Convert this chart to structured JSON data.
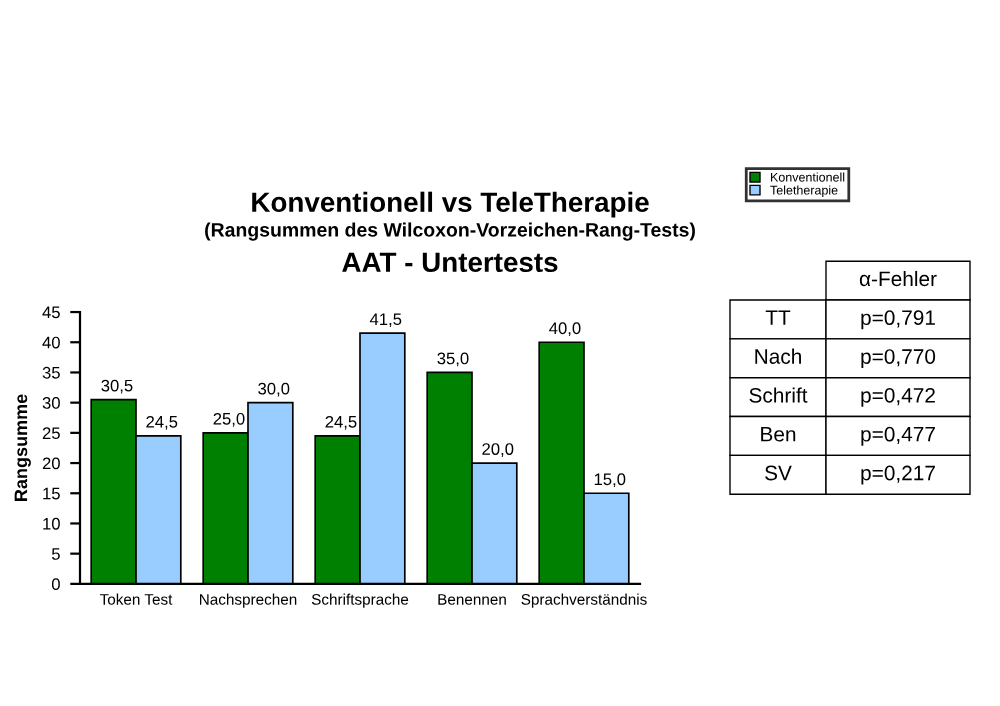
{
  "chart_data": {
    "type": "bar",
    "title": "Konventionell vs TeleTherapie",
    "subtitle": "(Rangsummen des Wilcoxon-Vorzeichen-Rang-Tests)",
    "ylabel": "Rangsumme",
    "annotations": [
      "AAT - Untertests",
      "α-Fehler",
      "TT",
      "p=0,791",
      "Nach",
      "p=0,770",
      "Schrift",
      "p=0,472",
      "Ben",
      "p=0,477",
      "SV",
      "p=0,217"
    ],
    "categories": [
      "Token Test",
      "Nachsprechen",
      "Schriftsprache",
      "Benennen",
      "Sprachverständnis"
    ],
    "series": [
      {
        "name": "Konventionell",
        "color": "#008000",
        "values": [
          30.5,
          25.0,
          24.5,
          35.0,
          40.0
        ],
        "value_labels": [
          "30,5",
          "25,0",
          "24,5",
          "35,0",
          "40,0"
        ]
      },
      {
        "name": "Teletherapie",
        "color": "#99ccff",
        "values": [
          24.5,
          30.0,
          41.5,
          20.0,
          15.0
        ],
        "value_labels": [
          "24,5",
          "30,0",
          "41,5",
          "20,0",
          "15,0"
        ]
      }
    ],
    "ylim": [
      0,
      45
    ],
    "yticks": [
      0,
      5,
      10,
      15,
      20,
      25,
      30,
      35,
      40,
      45
    ],
    "grid": false,
    "legend": "top right"
  }
}
